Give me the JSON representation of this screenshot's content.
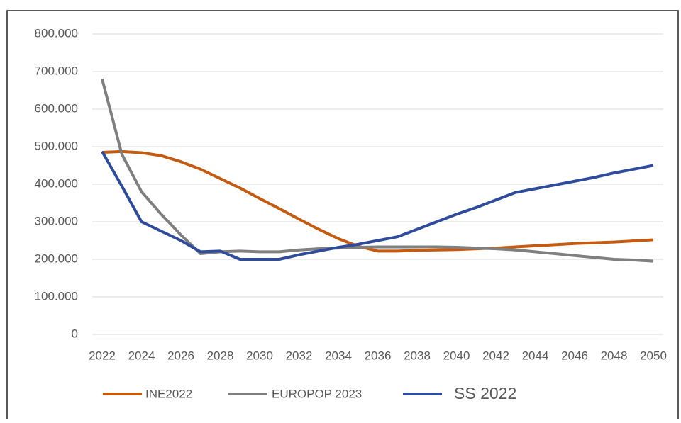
{
  "chart_data": {
    "type": "line",
    "x": [
      2022,
      2023,
      2024,
      2025,
      2026,
      2027,
      2028,
      2029,
      2030,
      2031,
      2032,
      2033,
      2034,
      2035,
      2036,
      2037,
      2038,
      2039,
      2040,
      2041,
      2042,
      2043,
      2044,
      2045,
      2046,
      2047,
      2048,
      2049,
      2050
    ],
    "series": [
      {
        "name": "INE2022",
        "color": "#c55a11",
        "values": [
          485000,
          487000,
          484000,
          476000,
          460000,
          440000,
          415000,
          390000,
          362000,
          335000,
          307000,
          280000,
          255000,
          235000,
          222000,
          222000,
          224000,
          225000,
          226000,
          228000,
          230000,
          233000,
          236000,
          239000,
          242000,
          244000,
          246000,
          249000,
          252000
        ]
      },
      {
        "name": "EUROPOP 2023",
        "color": "#7f7f7f",
        "values": [
          680000,
          480000,
          380000,
          320000,
          265000,
          215000,
          220000,
          222000,
          220000,
          220000,
          225000,
          228000,
          230000,
          232000,
          233000,
          233000,
          233000,
          233000,
          232000,
          230000,
          228000,
          225000,
          220000,
          215000,
          210000,
          205000,
          200000,
          198000,
          195000
        ]
      },
      {
        "name": "SS 2022",
        "color": "#2f4b9c",
        "values": [
          487000,
          395000,
          300000,
          275000,
          250000,
          220000,
          222000,
          200000,
          200000,
          200000,
          212000,
          222000,
          232000,
          240000,
          250000,
          260000,
          280000,
          300000,
          320000,
          338000,
          358000,
          378000,
          388000,
          398000,
          408000,
          418000,
          430000,
          440000,
          450000
        ]
      }
    ],
    "xlim": [
      2022,
      2050
    ],
    "xticks": [
      2022,
      2024,
      2026,
      2028,
      2030,
      2032,
      2034,
      2036,
      2038,
      2040,
      2042,
      2044,
      2046,
      2048,
      2050
    ],
    "ylim": [
      0,
      800000
    ],
    "yticks": [
      0,
      {
        "value": 100000,
        "label": "100.000"
      },
      {
        "value": 200000,
        "label": "200.000"
      },
      {
        "value": 300000,
        "label": "300.000"
      },
      {
        "value": 400000,
        "label": "400.000"
      },
      {
        "value": 500000,
        "label": "500.000"
      },
      {
        "value": 600000,
        "label": "600.000"
      },
      {
        "value": 700000,
        "label": "700.000"
      },
      {
        "value": 800000,
        "label": "800.000"
      }
    ],
    "grid": true,
    "legend": "bottom"
  }
}
